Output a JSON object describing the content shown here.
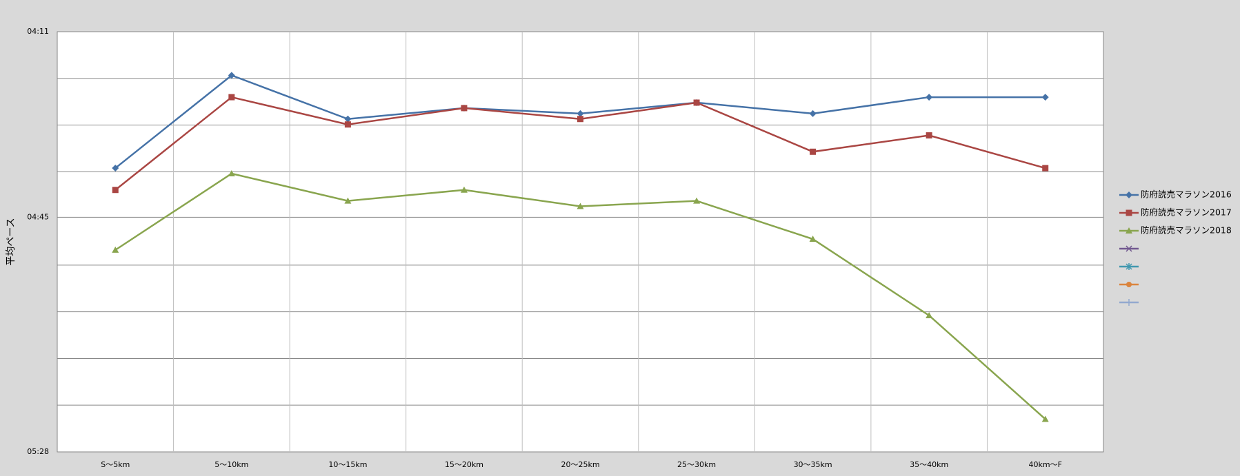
{
  "chart_data": {
    "type": "line",
    "y_label": "平均ペース",
    "categories": [
      "S～5km",
      "5～10km",
      "10～15km",
      "15～20km",
      "20～25km",
      "25～30km",
      "30～35km",
      "35～40km",
      "40km～F"
    ],
    "series": [
      {
        "name": "防府読売マラソン2016",
        "color": "#4572a7",
        "marker": "diamond",
        "values": [
          276,
          259,
          267,
          265,
          266,
          264,
          266,
          263,
          263
        ]
      },
      {
        "name": "防府読売マラソン2017",
        "color": "#aa4643",
        "marker": "square",
        "values": [
          280,
          263,
          268,
          265,
          267,
          264,
          273,
          270,
          276
        ]
      },
      {
        "name": "防府読売マラソン2018",
        "color": "#89a54e",
        "marker": "triangle",
        "values": [
          291,
          277,
          282,
          280,
          283,
          282,
          289,
          303,
          322
        ]
      },
      {
        "color": "#71588f",
        "marker": "x",
        "values": [
          null,
          null,
          null,
          null,
          null,
          null,
          null,
          null,
          null
        ]
      },
      {
        "color": "#4198af",
        "marker": "star",
        "values": [
          null,
          null,
          null,
          null,
          null,
          null,
          null,
          null,
          null
        ]
      },
      {
        "color": "#db843d",
        "marker": "circle",
        "values": [
          null,
          null,
          null,
          null,
          null,
          null,
          null,
          null,
          null
        ]
      },
      {
        "color": "#93a9cf",
        "marker": "plus",
        "values": [
          null,
          null,
          null,
          null,
          null,
          null,
          null,
          null,
          null
        ]
      }
    ],
    "ylim": [
      251,
      328
    ],
    "y_reversed": true,
    "yticks": [
      {
        "value": 251,
        "label": "04:11"
      },
      {
        "value": 259.56,
        "label": null
      },
      {
        "value": 268.11,
        "label": null
      },
      {
        "value": 276.67,
        "label": null
      },
      {
        "value": 285,
        "label": "04:45"
      },
      {
        "value": 293.78,
        "label": null
      },
      {
        "value": 302.33,
        "label": null
      },
      {
        "value": 310.89,
        "label": null
      },
      {
        "value": 319.44,
        "label": null
      },
      {
        "value": 328,
        "label": "05:28"
      }
    ],
    "grid": true,
    "legend": "right"
  }
}
